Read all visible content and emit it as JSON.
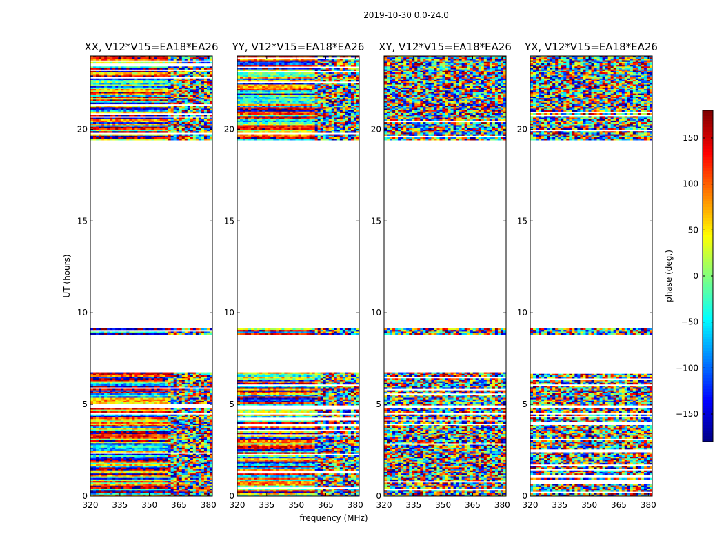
{
  "figure": {
    "suptitle": "2019-10-30 0.0-24.0"
  },
  "chart_data": {
    "type": "heatmap",
    "xlabel": "frequency (MHz)",
    "ylabel": "UT (hours)",
    "xlim": [
      320,
      382
    ],
    "ylim": [
      0,
      24
    ],
    "x_ticks": [
      320,
      335,
      350,
      365,
      380
    ],
    "y_ticks": [
      0,
      5,
      10,
      15,
      20
    ],
    "panels": [
      {
        "title": "XX, V12*V15=EA18*EA26",
        "kind": "parallel"
      },
      {
        "title": "YY, V12*V15=EA18*EA26",
        "kind": "parallel"
      },
      {
        "title": "XY, V12*V15=EA18*EA26",
        "kind": "cross"
      },
      {
        "title": "YX, V12*V15=EA18*EA26",
        "kind": "cross"
      }
    ],
    "data_time_ranges_hours": [
      [
        0.0,
        4.45
      ],
      [
        4.55,
        4.8
      ],
      [
        4.95,
        6.75
      ],
      [
        8.8,
        9.15
      ],
      [
        19.4,
        24.0
      ]
    ],
    "colorbar": {
      "label": "phase (deg.)",
      "range": [
        -180,
        180
      ],
      "ticks": [
        -150,
        -100,
        -50,
        0,
        50,
        100,
        150
      ],
      "colormap": "jet"
    },
    "grid": false
  }
}
